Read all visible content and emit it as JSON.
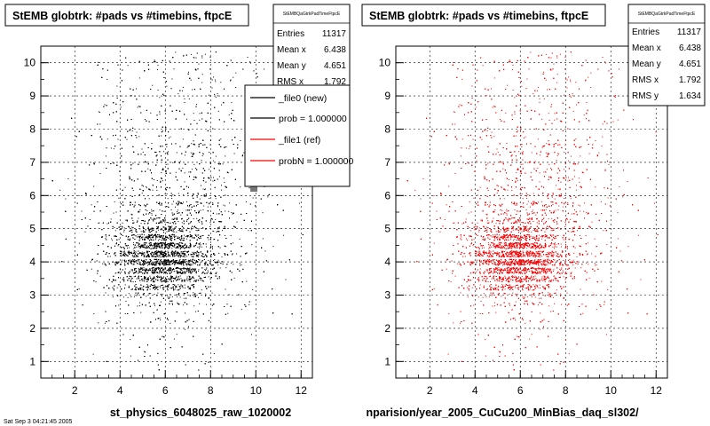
{
  "chart_data": [
    {
      "type": "scatter",
      "title": "StEMB globtrk: #pads vs #timebins, ftpcE",
      "xlabel": "st_physics_6048025_raw_1020002",
      "ylabel": "",
      "xlim": [
        0.5,
        12.5
      ],
      "ylim": [
        0.5,
        10.5
      ],
      "xticks": [
        "2",
        "4",
        "6",
        "8",
        "10",
        "12"
      ],
      "yticks": [
        "1",
        "2",
        "3",
        "4",
        "5",
        "6",
        "7",
        "8",
        "9",
        "10"
      ],
      "grid": true,
      "marker_color": "#000000",
      "stats": {
        "name": "StEMBQaGtrkPadTimeFtpcE",
        "rows": [
          {
            "label": "Entries",
            "value": "11317"
          },
          {
            "label": "Mean x",
            "value": "6.438"
          },
          {
            "label": "Mean y",
            "value": "4.651"
          },
          {
            "label": "RMS x",
            "value": "1.792"
          }
        ]
      },
      "legend": {
        "placement": "right",
        "entries": [
          {
            "label": "_file0 (new)",
            "color": "#000000"
          },
          {
            "label": "prob = 1.000000",
            "color": "#000000"
          },
          {
            "label": "_file1 (ref)",
            "color": "#ff0000"
          },
          {
            "label": "probN = 1.000000",
            "color": "#ff0000"
          }
        ]
      },
      "series": [
        {
          "x_mean": 6.438,
          "y_mean": 4.651,
          "x_rms": 1.792,
          "y_rms": 1.634,
          "color": "#000000"
        }
      ]
    },
    {
      "type": "scatter",
      "title": "StEMB globtrk: #pads vs #timebins, ftpcE",
      "xlabel": "nparision/year_2005_CuCu200_MinBias_daq_sl302/",
      "ylabel": "",
      "xlim": [
        0.5,
        12.5
      ],
      "ylim": [
        0.5,
        10.5
      ],
      "xticks": [
        "2",
        "4",
        "6",
        "8",
        "10",
        "12"
      ],
      "yticks": [
        "1",
        "2",
        "3",
        "4",
        "5",
        "6",
        "7",
        "8",
        "9",
        "10"
      ],
      "grid": true,
      "marker_color": "#ff0000",
      "stats": {
        "name": "StEMBQaGtrkPadTimeFtpcE",
        "rows": [
          {
            "label": "Entries",
            "value": "11317"
          },
          {
            "label": "Mean x",
            "value": "6.438"
          },
          {
            "label": "Mean y",
            "value": "4.651"
          },
          {
            "label": "RMS x",
            "value": "1.792"
          },
          {
            "label": "RMS y",
            "value": "1.634"
          }
        ]
      },
      "series": [
        {
          "x_mean": 6.438,
          "y_mean": 4.651,
          "x_rms": 1.792,
          "y_rms": 1.634,
          "color": "#ff0000"
        }
      ]
    }
  ],
  "footer_note": "Sat Sep 3 04:21:45 2005"
}
